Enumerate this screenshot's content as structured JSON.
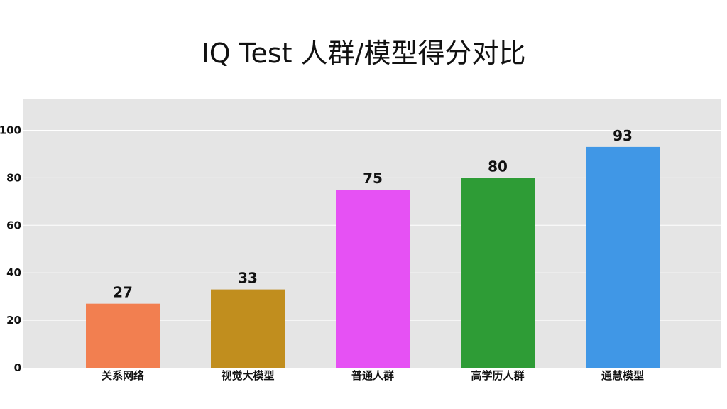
{
  "chart_data": {
    "type": "bar",
    "title": "IQ Test 人群/模型得分对比",
    "categories": [
      "关系网络",
      "视觉大模型",
      "普通人群",
      "高学历人群",
      "通慧模型"
    ],
    "values": [
      27,
      33,
      75,
      80,
      93
    ],
    "colors": [
      "#f27f50",
      "#c18e1e",
      "#e651f4",
      "#2e9c36",
      "#4097e6"
    ],
    "ylim": [
      0,
      113
    ],
    "yticks": [
      0,
      20,
      40,
      60,
      80,
      100
    ],
    "grid": true,
    "background": "#e5e5e5",
    "data_labels": true
  }
}
